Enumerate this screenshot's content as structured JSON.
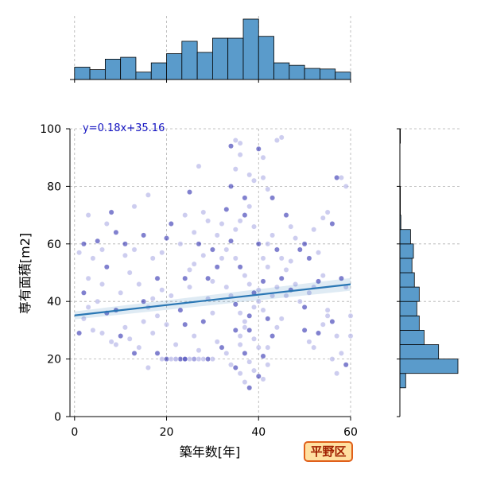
{
  "chart_data": {
    "type": "scatter",
    "xlabel": "築年数[年]",
    "ylabel": "専有面積[m2]",
    "xlim": [
      -1,
      60
    ],
    "ylim": [
      0,
      100
    ],
    "xticks": [
      0,
      20,
      40,
      60
    ],
    "yticks": [
      0,
      20,
      40,
      60,
      80,
      100
    ],
    "grid": true,
    "regression": {
      "slope": 0.18,
      "intercept": 35.16,
      "label": "y=0.18x+35.16"
    },
    "badge": "平野区",
    "colors": {
      "points_dark": "#1a1aa8",
      "points_light": "#b8b8e8",
      "bars": "#5a9bcb",
      "line": "#2a77b4"
    },
    "top_histogram": {
      "bin_edges": [
        0,
        3.33,
        6.67,
        10,
        13.33,
        16.67,
        20,
        23.33,
        26.67,
        30,
        33.33,
        36.67,
        40,
        43.33,
        46.67,
        50,
        53.33,
        56.67,
        60
      ],
      "counts": [
        20,
        16,
        33,
        36,
        12,
        27,
        42,
        62,
        44,
        67,
        67,
        98,
        70,
        27,
        23,
        18,
        17,
        12
      ]
    },
    "right_histogram": {
      "bin_edges": [
        10,
        15,
        20,
        25,
        30,
        35,
        40,
        45,
        50,
        55,
        60,
        65,
        70,
        75,
        80,
        85,
        90,
        95,
        100
      ],
      "counts": [
        12,
        120,
        80,
        50,
        40,
        35,
        40,
        30,
        25,
        28,
        22,
        2,
        1,
        1,
        0,
        0,
        0,
        1
      ]
    },
    "points": [
      [
        1,
        29
      ],
      [
        2,
        34
      ],
      [
        3,
        38
      ],
      [
        2,
        43
      ],
      [
        4,
        55
      ],
      [
        1,
        57
      ],
      [
        5,
        61
      ],
      [
        3,
        70
      ],
      [
        6,
        46
      ],
      [
        7,
        52
      ],
      [
        8,
        26
      ],
      [
        9,
        25
      ],
      [
        10,
        28
      ],
      [
        11,
        31
      ],
      [
        12,
        27
      ],
      [
        13,
        22
      ],
      [
        14,
        24
      ],
      [
        15,
        33
      ],
      [
        9,
        37
      ],
      [
        10,
        43
      ],
      [
        12,
        50
      ],
      [
        11,
        60
      ],
      [
        13,
        73
      ],
      [
        16,
        77
      ],
      [
        8,
        71
      ],
      [
        6,
        58
      ],
      [
        5,
        40
      ],
      [
        7,
        36
      ],
      [
        4,
        30
      ],
      [
        14,
        46
      ],
      [
        15,
        40
      ],
      [
        16,
        38
      ],
      [
        17,
        41
      ],
      [
        18,
        48
      ],
      [
        19,
        44
      ],
      [
        17,
        29
      ],
      [
        18,
        22
      ],
      [
        16,
        17
      ],
      [
        19,
        57
      ],
      [
        20,
        62
      ],
      [
        18,
        35
      ],
      [
        17,
        55
      ],
      [
        15,
        63
      ],
      [
        13,
        58
      ],
      [
        11,
        56
      ],
      [
        9,
        64
      ],
      [
        7,
        67
      ],
      [
        3,
        48
      ],
      [
        2,
        60
      ],
      [
        6,
        29
      ],
      [
        19,
        20
      ],
      [
        20,
        20
      ],
      [
        21,
        20
      ],
      [
        22,
        20
      ],
      [
        23,
        20
      ],
      [
        24,
        20
      ],
      [
        25,
        20
      ],
      [
        26,
        20
      ],
      [
        27,
        20
      ],
      [
        28,
        20
      ],
      [
        29,
        20
      ],
      [
        30,
        20
      ],
      [
        22,
        20
      ],
      [
        24,
        20
      ],
      [
        26,
        20
      ],
      [
        22,
        25
      ],
      [
        24,
        32
      ],
      [
        25,
        45
      ],
      [
        23,
        60
      ],
      [
        21,
        67
      ],
      [
        24,
        70
      ],
      [
        26,
        64
      ],
      [
        25,
        78
      ],
      [
        27,
        87
      ],
      [
        28,
        56
      ],
      [
        29,
        48
      ],
      [
        30,
        36
      ],
      [
        31,
        26
      ],
      [
        32,
        24
      ],
      [
        33,
        22
      ],
      [
        34,
        18
      ],
      [
        35,
        17
      ],
      [
        36,
        15
      ],
      [
        37,
        12
      ],
      [
        38,
        10
      ],
      [
        20,
        32
      ],
      [
        21,
        42
      ],
      [
        23,
        37
      ],
      [
        26,
        28
      ],
      [
        27,
        23
      ],
      [
        28,
        33
      ],
      [
        29,
        41
      ],
      [
        30,
        47
      ],
      [
        31,
        52
      ],
      [
        32,
        55
      ],
      [
        33,
        58
      ],
      [
        34,
        61
      ],
      [
        35,
        65
      ],
      [
        36,
        68
      ],
      [
        37,
        70
      ],
      [
        38,
        73
      ],
      [
        39,
        66
      ],
      [
        40,
        60
      ],
      [
        41,
        55
      ],
      [
        42,
        52
      ],
      [
        30,
        58
      ],
      [
        31,
        63
      ],
      [
        32,
        67
      ],
      [
        33,
        72
      ],
      [
        29,
        68
      ],
      [
        28,
        71
      ],
      [
        27,
        60
      ],
      [
        26,
        53
      ],
      [
        25,
        51
      ],
      [
        24,
        48
      ],
      [
        33,
        45
      ],
      [
        34,
        42
      ],
      [
        35,
        39
      ],
      [
        36,
        36
      ],
      [
        37,
        33
      ],
      [
        38,
        30
      ],
      [
        39,
        27
      ],
      [
        40,
        24
      ],
      [
        41,
        21
      ],
      [
        42,
        18
      ],
      [
        36,
        25
      ],
      [
        37,
        22
      ],
      [
        38,
        19
      ],
      [
        39,
        16
      ],
      [
        40,
        14
      ],
      [
        41,
        13
      ],
      [
        42,
        24
      ],
      [
        43,
        28
      ],
      [
        44,
        31
      ],
      [
        45,
        34
      ],
      [
        34,
        80
      ],
      [
        35,
        86
      ],
      [
        36,
        91
      ],
      [
        37,
        76
      ],
      [
        38,
        84
      ],
      [
        39,
        82
      ],
      [
        40,
        93
      ],
      [
        41,
        83
      ],
      [
        42,
        79
      ],
      [
        43,
        76
      ],
      [
        44,
        96
      ],
      [
        45,
        97
      ],
      [
        46,
        70
      ],
      [
        47,
        66
      ],
      [
        48,
        62
      ],
      [
        49,
        58
      ],
      [
        35,
        96
      ],
      [
        36,
        95
      ],
      [
        34,
        94
      ],
      [
        41,
        90
      ],
      [
        35,
        55
      ],
      [
        36,
        52
      ],
      [
        37,
        49
      ],
      [
        38,
        46
      ],
      [
        39,
        43
      ],
      [
        40,
        40
      ],
      [
        41,
        37
      ],
      [
        42,
        34
      ],
      [
        43,
        42
      ],
      [
        44,
        45
      ],
      [
        45,
        48
      ],
      [
        46,
        51
      ],
      [
        47,
        54
      ],
      [
        35,
        30
      ],
      [
        36,
        28
      ],
      [
        37,
        31
      ],
      [
        38,
        35
      ],
      [
        39,
        38
      ],
      [
        40,
        44
      ],
      [
        41,
        47
      ],
      [
        42,
        60
      ],
      [
        43,
        63
      ],
      [
        44,
        58
      ],
      [
        45,
        55
      ],
      [
        46,
        42
      ],
      [
        47,
        44
      ],
      [
        48,
        46
      ],
      [
        49,
        40
      ],
      [
        50,
        38
      ],
      [
        51,
        43
      ],
      [
        52,
        45
      ],
      [
        53,
        47
      ],
      [
        54,
        49
      ],
      [
        55,
        37
      ],
      [
        56,
        33
      ],
      [
        57,
        28
      ],
      [
        58,
        22
      ],
      [
        59,
        18
      ],
      [
        57,
        15
      ],
      [
        56,
        20
      ],
      [
        50,
        30
      ],
      [
        51,
        26
      ],
      [
        52,
        24
      ],
      [
        53,
        29
      ],
      [
        54,
        32
      ],
      [
        55,
        35
      ],
      [
        50,
        60
      ],
      [
        52,
        65
      ],
      [
        54,
        69
      ],
      [
        56,
        67
      ],
      [
        58,
        83
      ],
      [
        59,
        80
      ],
      [
        57,
        83
      ],
      [
        55,
        71
      ],
      [
        53,
        57
      ],
      [
        51,
        55
      ],
      [
        60,
        35
      ],
      [
        59,
        45
      ],
      [
        58,
        48
      ],
      [
        60,
        28
      ]
    ]
  }
}
